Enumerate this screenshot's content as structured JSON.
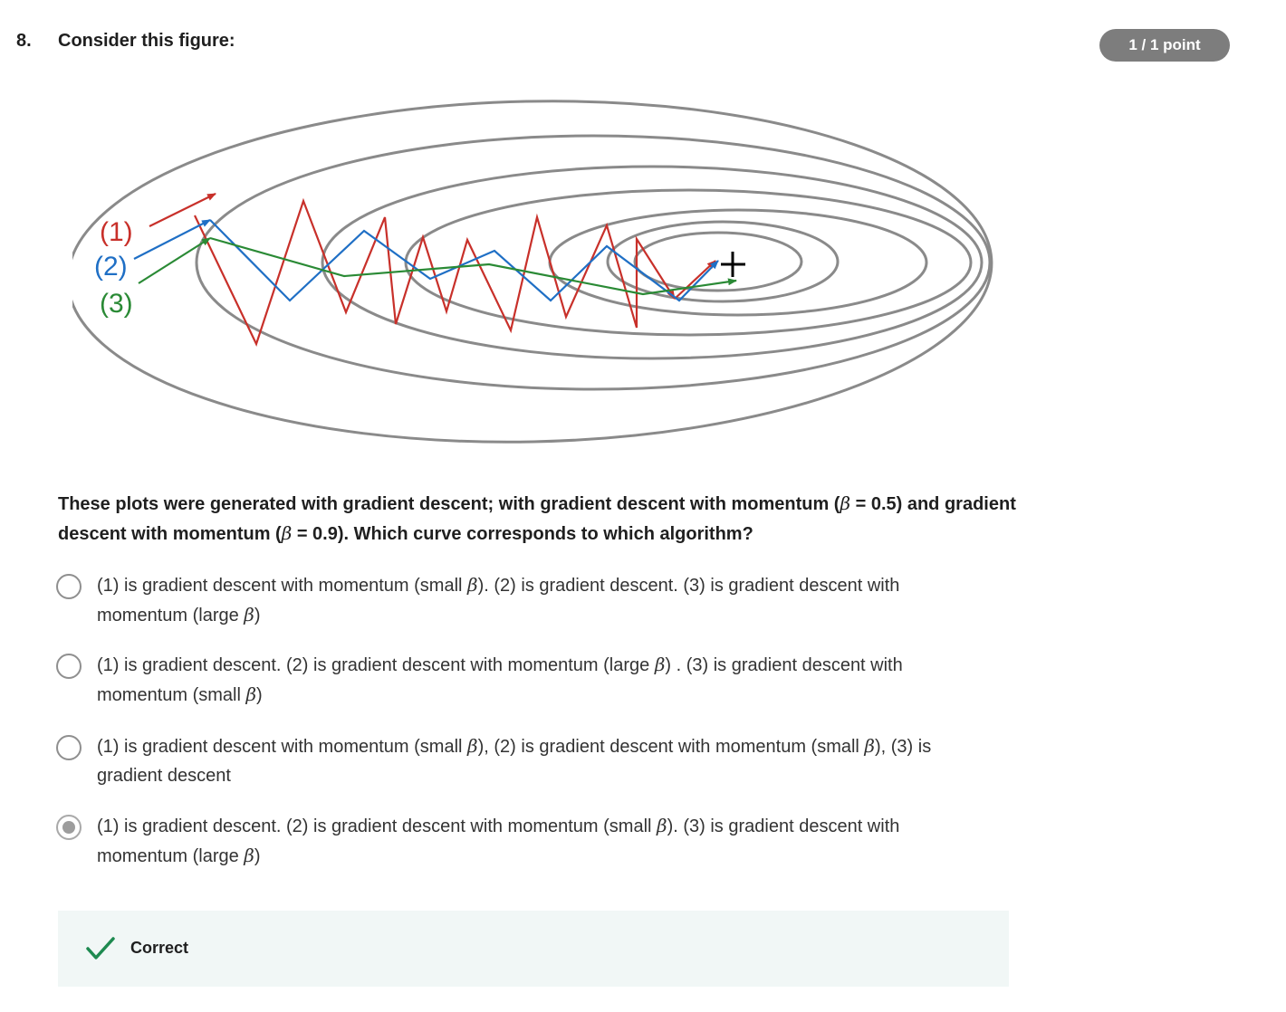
{
  "question": {
    "number": "8.",
    "title": "Consider this figure:",
    "score": "1 / 1 point",
    "prompt_part1": "These plots were generated with gradient descent; with gradient descent with momentum (",
    "beta_symbol": "β",
    "prompt_part2": " = 0.5) and gradient descent with momentum (",
    "prompt_part3": " = 0.9). Which curve corresponds to which algorithm?"
  },
  "figure": {
    "labels": [
      "(1)",
      "(2)",
      "(3)"
    ],
    "colors": {
      "curve1": "#c8302a",
      "curve2": "#1f6fc5",
      "curve3": "#2a8a35",
      "contours": "#8a8a8a",
      "optimum": "#000000"
    }
  },
  "options": [
    {
      "segments": [
        "(1) is gradient descent with momentum (small ",
        "). (2) is gradient descent. (3) is gradient descent with momentum (large ",
        ")"
      ],
      "selected": false
    },
    {
      "segments": [
        "(1) is gradient descent. (2) is gradient descent with momentum (large ",
        ") . (3) is gradient descent with momentum (small ",
        ")"
      ],
      "selected": false
    },
    {
      "segments": [
        "(1) is gradient descent with momentum (small ",
        "), (2) is gradient descent with momentum (small ",
        "), (3) is gradient descent"
      ],
      "selected": false
    },
    {
      "segments": [
        "(1) is gradient descent. (2) is gradient descent with momentum (small ",
        "). (3) is gradient descent with momentum (large ",
        ")"
      ],
      "selected": true
    }
  ],
  "feedback": {
    "status": "Correct",
    "icon": "check-icon",
    "color": "#1e8a50"
  }
}
